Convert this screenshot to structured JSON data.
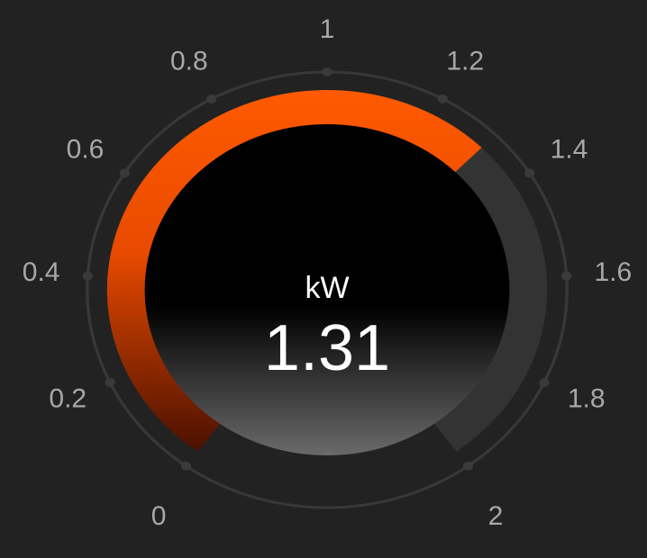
{
  "chart_data": {
    "type": "gauge",
    "unit": "kW",
    "value": 1.31,
    "ylim": [
      0,
      2
    ],
    "yticks": [
      0,
      0.2,
      0.4,
      0.6,
      0.8,
      1,
      1.2,
      1.4,
      1.6,
      1.8,
      2
    ],
    "color": "#ff5500",
    "track_color": "#333333"
  }
}
